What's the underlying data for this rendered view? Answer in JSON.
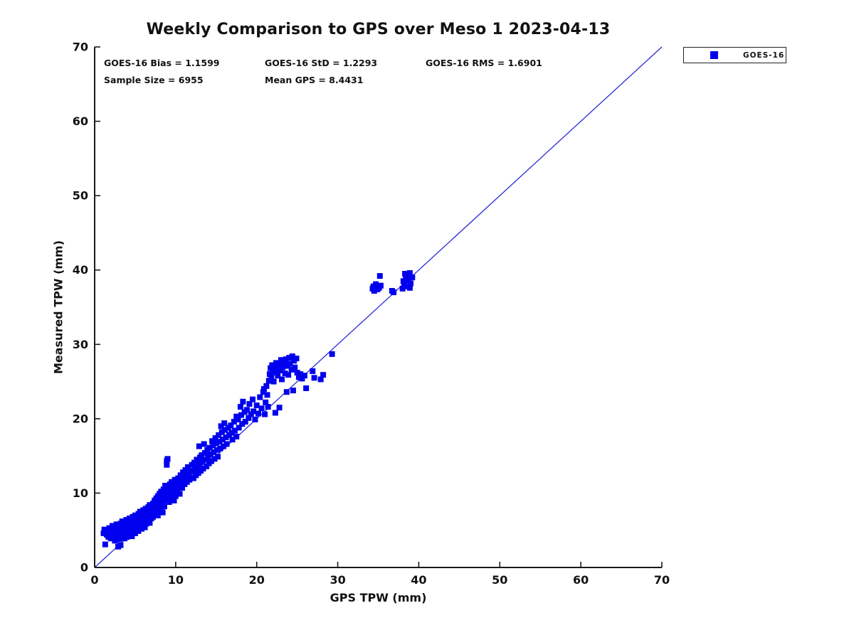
{
  "chart": {
    "title": "Weekly Comparison to GPS over Meso 1 2023-04-13",
    "stats": {
      "bias": "GOES-16 Bias = 1.1599",
      "std": "GOES-16 StD = 1.2293",
      "rms": "GOES-16 RMS = 1.6901",
      "sample_size": "Sample Size = 6955",
      "mean_gps": "Mean GPS = 8.4431"
    },
    "xlabel": "GPS TPW (mm)",
    "ylabel": "Measured TPW (mm)",
    "legend": {
      "label": "GOES-16",
      "marker_color": "#0000ee"
    }
  },
  "chart_data": {
    "type": "scatter",
    "title": "Weekly Comparison to GPS over Meso 1 2023-04-13",
    "xlabel": "GPS TPW (mm)",
    "ylabel": "Measured TPW (mm)",
    "xlim": [
      0,
      70
    ],
    "ylim": [
      0,
      70
    ],
    "x_ticks": [
      0,
      10,
      20,
      30,
      40,
      50,
      60,
      70
    ],
    "y_ticks": [
      0,
      10,
      20,
      30,
      40,
      50,
      60,
      70
    ],
    "grid": false,
    "legend_position": "top-right-outside",
    "stats": {
      "goes16_bias": 1.1599,
      "goes16_std": 1.2293,
      "goes16_rms": 1.6901,
      "sample_size": 6955,
      "mean_gps": 8.4431
    },
    "reference_line": {
      "from": [
        0,
        0
      ],
      "to": [
        70,
        70
      ],
      "color": "#2b2bd4"
    },
    "series": [
      {
        "name": "GOES-16",
        "marker": "square",
        "color": "#0000ee",
        "points": [
          [
            1.3,
            3.1
          ],
          [
            2.9,
            2.8
          ],
          [
            3.2,
            3.0
          ],
          [
            1.1,
            4.6
          ],
          [
            1.5,
            4.9
          ],
          [
            1.9,
            4.3
          ],
          [
            2.3,
            4.1
          ],
          [
            1.2,
            5.1
          ],
          [
            1.5,
            4.4
          ],
          [
            1.6,
            5.0
          ],
          [
            1.7,
            4.1
          ],
          [
            1.8,
            5.3
          ],
          [
            1.9,
            4.7
          ],
          [
            2.0,
            3.9
          ],
          [
            2.0,
            5.0
          ],
          [
            2.1,
            4.4
          ],
          [
            2.2,
            5.6
          ],
          [
            2.3,
            4.9
          ],
          [
            2.4,
            4.2
          ],
          [
            2.5,
            5.2
          ],
          [
            2.5,
            3.6
          ],
          [
            2.6,
            4.6
          ],
          [
            2.7,
            5.8
          ],
          [
            2.8,
            5.0
          ],
          [
            2.9,
            4.3
          ],
          [
            3.0,
            5.4
          ],
          [
            3.0,
            3.8
          ],
          [
            3.1,
            4.8
          ],
          [
            3.2,
            5.9
          ],
          [
            3.2,
            4.4
          ],
          [
            3.3,
            5.1
          ],
          [
            3.4,
            4.0
          ],
          [
            3.4,
            6.2
          ],
          [
            3.5,
            5.5
          ],
          [
            3.6,
            4.7
          ],
          [
            3.7,
            5.9
          ],
          [
            3.7,
            3.9
          ],
          [
            3.8,
            5.2
          ],
          [
            3.9,
            4.5
          ],
          [
            3.9,
            6.4
          ],
          [
            4.0,
            5.7
          ],
          [
            4.0,
            4.1
          ],
          [
            4.1,
            6.0
          ],
          [
            4.2,
            5.0
          ],
          [
            4.2,
            4.4
          ],
          [
            4.3,
            6.6
          ],
          [
            4.4,
            5.4
          ],
          [
            4.4,
            4.7
          ],
          [
            4.5,
            6.1
          ],
          [
            4.6,
            5.6
          ],
          [
            4.6,
            4.2
          ],
          [
            4.7,
            6.8
          ],
          [
            4.8,
            5.1
          ],
          [
            4.8,
            6.3
          ],
          [
            4.9,
            5.8
          ],
          [
            5.0,
            4.6
          ],
          [
            5.0,
            7.0
          ],
          [
            5.1,
            6.5
          ],
          [
            5.2,
            5.3
          ],
          [
            5.2,
            6.9
          ],
          [
            5.3,
            6.0
          ],
          [
            5.4,
            4.9
          ],
          [
            5.4,
            7.2
          ],
          [
            5.5,
            6.4
          ],
          [
            5.6,
            5.6
          ],
          [
            5.6,
            7.5
          ],
          [
            5.7,
            6.8
          ],
          [
            5.8,
            5.2
          ],
          [
            5.8,
            7.0
          ],
          [
            5.9,
            6.2
          ],
          [
            6.0,
            5.7
          ],
          [
            6.0,
            7.7
          ],
          [
            6.1,
            6.6
          ],
          [
            6.2,
            7.2
          ],
          [
            6.2,
            5.4
          ],
          [
            6.3,
            7.9
          ],
          [
            6.4,
            6.9
          ],
          [
            6.4,
            5.9
          ],
          [
            6.5,
            7.4
          ],
          [
            6.6,
            6.3
          ],
          [
            6.6,
            8.1
          ],
          [
            6.7,
            7.0
          ],
          [
            6.8,
            6.0
          ],
          [
            6.8,
            8.4
          ],
          [
            6.9,
            7.6
          ],
          [
            7.0,
            6.6
          ],
          [
            7.0,
            8.0
          ],
          [
            7.1,
            7.3
          ],
          [
            7.2,
            8.6
          ],
          [
            7.2,
            6.8
          ],
          [
            7.3,
            7.8
          ],
          [
            7.4,
            7.1
          ],
          [
            7.4,
            9.0
          ],
          [
            7.5,
            8.2
          ],
          [
            7.6,
            7.5
          ],
          [
            7.6,
            9.3
          ],
          [
            7.7,
            8.8
          ],
          [
            7.8,
            7.0
          ],
          [
            7.8,
            9.6
          ],
          [
            7.9,
            8.4
          ],
          [
            8.0,
            7.7
          ],
          [
            8.0,
            9.9
          ],
          [
            8.1,
            9.1
          ],
          [
            8.2,
            8.0
          ],
          [
            8.2,
            10.2
          ],
          [
            8.3,
            9.4
          ],
          [
            8.4,
            8.6
          ],
          [
            8.4,
            7.4
          ],
          [
            8.5,
            10.5
          ],
          [
            8.6,
            9.7
          ],
          [
            8.6,
            8.2
          ],
          [
            8.7,
            11.0
          ],
          [
            8.8,
            10.0
          ],
          [
            8.8,
            9.0
          ],
          [
            8.9,
            14.3
          ],
          [
            8.9,
            13.8
          ],
          [
            9.0,
            14.6
          ],
          [
            9.0,
            10.8
          ],
          [
            9.1,
            9.5
          ],
          [
            9.2,
            10.4
          ],
          [
            9.2,
            8.8
          ],
          [
            9.3,
            11.2
          ],
          [
            9.4,
            10.0
          ],
          [
            9.4,
            9.2
          ],
          [
            9.5,
            11.5
          ],
          [
            9.6,
            10.6
          ],
          [
            9.6,
            9.8
          ],
          [
            9.7,
            11.0
          ],
          [
            9.8,
            10.2
          ],
          [
            9.8,
            9.0
          ],
          [
            9.9,
            11.8
          ],
          [
            10.0,
            10.9
          ],
          [
            10.0,
            9.6
          ],
          [
            10.1,
            11.3
          ],
          [
            10.2,
            10.4
          ],
          [
            10.3,
            12.0
          ],
          [
            10.4,
            11.0
          ],
          [
            10.5,
            9.9
          ],
          [
            10.6,
            12.4
          ],
          [
            10.7,
            11.6
          ],
          [
            10.8,
            10.7
          ],
          [
            10.9,
            12.8
          ],
          [
            11.0,
            12.0
          ],
          [
            11.1,
            11.2
          ],
          [
            11.2,
            13.1
          ],
          [
            11.3,
            12.3
          ],
          [
            11.4,
            11.5
          ],
          [
            11.5,
            13.5
          ],
          [
            11.6,
            12.6
          ],
          [
            11.7,
            11.8
          ],
          [
            11.8,
            13.0
          ],
          [
            11.9,
            12.1
          ],
          [
            12.0,
            13.8
          ],
          [
            12.1,
            12.9
          ],
          [
            12.2,
            12.0
          ],
          [
            12.3,
            14.1
          ],
          [
            12.4,
            13.3
          ],
          [
            12.5,
            12.4
          ],
          [
            12.6,
            14.5
          ],
          [
            12.7,
            13.6
          ],
          [
            12.8,
            12.7
          ],
          [
            12.9,
            16.3
          ],
          [
            13.0,
            14.8
          ],
          [
            13.0,
            13.9
          ],
          [
            13.1,
            13.0
          ],
          [
            13.2,
            15.1
          ],
          [
            13.3,
            14.2
          ],
          [
            13.4,
            13.3
          ],
          [
            13.5,
            16.6
          ],
          [
            13.6,
            15.4
          ],
          [
            13.7,
            14.5
          ],
          [
            13.8,
            13.6
          ],
          [
            13.9,
            15.8
          ],
          [
            14.0,
            14.9
          ],
          [
            14.1,
            14.0
          ],
          [
            14.2,
            16.1
          ],
          [
            14.3,
            15.2
          ],
          [
            14.4,
            14.3
          ],
          [
            14.5,
            17.0
          ],
          [
            14.6,
            16.4
          ],
          [
            14.7,
            15.5
          ],
          [
            14.8,
            14.6
          ],
          [
            14.9,
            17.4
          ],
          [
            15.0,
            16.7
          ],
          [
            15.1,
            15.8
          ],
          [
            15.2,
            14.9
          ],
          [
            15.3,
            17.8
          ],
          [
            15.4,
            16.9
          ],
          [
            15.5,
            16.0
          ],
          [
            15.6,
            19.0
          ],
          [
            15.7,
            18.2
          ],
          [
            15.8,
            17.2
          ],
          [
            15.9,
            16.3
          ],
          [
            16.0,
            19.4
          ],
          [
            16.1,
            18.5
          ],
          [
            16.2,
            17.5
          ],
          [
            16.3,
            16.6
          ],
          [
            16.5,
            18.8
          ],
          [
            16.6,
            17.8
          ],
          [
            16.8,
            19.1
          ],
          [
            16.9,
            18.1
          ],
          [
            17.0,
            17.2
          ],
          [
            17.2,
            19.6
          ],
          [
            17.3,
            18.4
          ],
          [
            17.5,
            20.3
          ],
          [
            17.5,
            17.6
          ],
          [
            17.7,
            19.9
          ],
          [
            17.8,
            18.8
          ],
          [
            18.0,
            21.6
          ],
          [
            18.1,
            20.5
          ],
          [
            18.2,
            19.3
          ],
          [
            18.3,
            22.3
          ],
          [
            18.5,
            20.9
          ],
          [
            18.6,
            19.6
          ],
          [
            18.8,
            21.2
          ],
          [
            19.0,
            20.1
          ],
          [
            19.1,
            22.0
          ],
          [
            19.3,
            20.6
          ],
          [
            19.5,
            22.6
          ],
          [
            19.6,
            21.0
          ],
          [
            19.8,
            19.9
          ],
          [
            20.0,
            21.8
          ],
          [
            20.2,
            20.7
          ],
          [
            20.4,
            22.9
          ],
          [
            20.6,
            21.4
          ],
          [
            20.8,
            23.6
          ],
          [
            21.0,
            20.6
          ],
          [
            21.1,
            22.2
          ],
          [
            21.3,
            23.2
          ],
          [
            21.4,
            21.6
          ],
          [
            21.2,
            24.4
          ],
          [
            20.9,
            24.0
          ],
          [
            22.3,
            20.8
          ],
          [
            22.8,
            21.5
          ],
          [
            21.5,
            25.1
          ],
          [
            21.6,
            26.0
          ],
          [
            21.7,
            26.8
          ],
          [
            21.8,
            25.5
          ],
          [
            21.9,
            27.2
          ],
          [
            22.0,
            26.4
          ],
          [
            22.1,
            25.0
          ],
          [
            22.2,
            27.0
          ],
          [
            22.3,
            26.2
          ],
          [
            22.4,
            27.5
          ],
          [
            22.5,
            26.7
          ],
          [
            22.6,
            25.8
          ],
          [
            22.8,
            27.3
          ],
          [
            22.9,
            26.5
          ],
          [
            23.0,
            27.9
          ],
          [
            23.1,
            25.3
          ],
          [
            23.2,
            26.9
          ],
          [
            23.4,
            27.6
          ],
          [
            23.5,
            26.1
          ],
          [
            23.6,
            28.0
          ],
          [
            23.8,
            27.1
          ],
          [
            23.9,
            25.9
          ],
          [
            24.0,
            28.2
          ],
          [
            24.1,
            27.4
          ],
          [
            24.3,
            26.6
          ],
          [
            24.4,
            28.4
          ],
          [
            24.6,
            27.8
          ],
          [
            24.7,
            26.9
          ],
          [
            24.9,
            28.1
          ],
          [
            25.0,
            26.2
          ],
          [
            25.2,
            25.6
          ],
          [
            25.4,
            26.0
          ],
          [
            25.6,
            25.4
          ],
          [
            25.9,
            25.8
          ],
          [
            23.7,
            23.6
          ],
          [
            24.5,
            23.8
          ],
          [
            26.9,
            26.4
          ],
          [
            27.1,
            25.5
          ],
          [
            27.9,
            25.3
          ],
          [
            28.2,
            25.9
          ],
          [
            29.3,
            28.7
          ],
          [
            26.1,
            24.1
          ],
          [
            35.2,
            39.2
          ],
          [
            34.4,
            37.8
          ],
          [
            34.7,
            38.1
          ],
          [
            35.1,
            37.6
          ],
          [
            34.5,
            37.2
          ],
          [
            34.9,
            37.4
          ],
          [
            35.3,
            37.9
          ],
          [
            34.3,
            37.5
          ],
          [
            36.7,
            37.2
          ],
          [
            36.9,
            37.0
          ],
          [
            38.0,
            37.5
          ],
          [
            38.2,
            38.0
          ],
          [
            38.4,
            38.8
          ],
          [
            38.6,
            39.3
          ],
          [
            38.3,
            39.5
          ],
          [
            38.1,
            38.5
          ],
          [
            38.5,
            37.8
          ],
          [
            38.9,
            37.6
          ],
          [
            39.0,
            38.2
          ],
          [
            38.7,
            38.6
          ],
          [
            39.2,
            39.0
          ],
          [
            38.9,
            39.6
          ]
        ]
      }
    ]
  }
}
